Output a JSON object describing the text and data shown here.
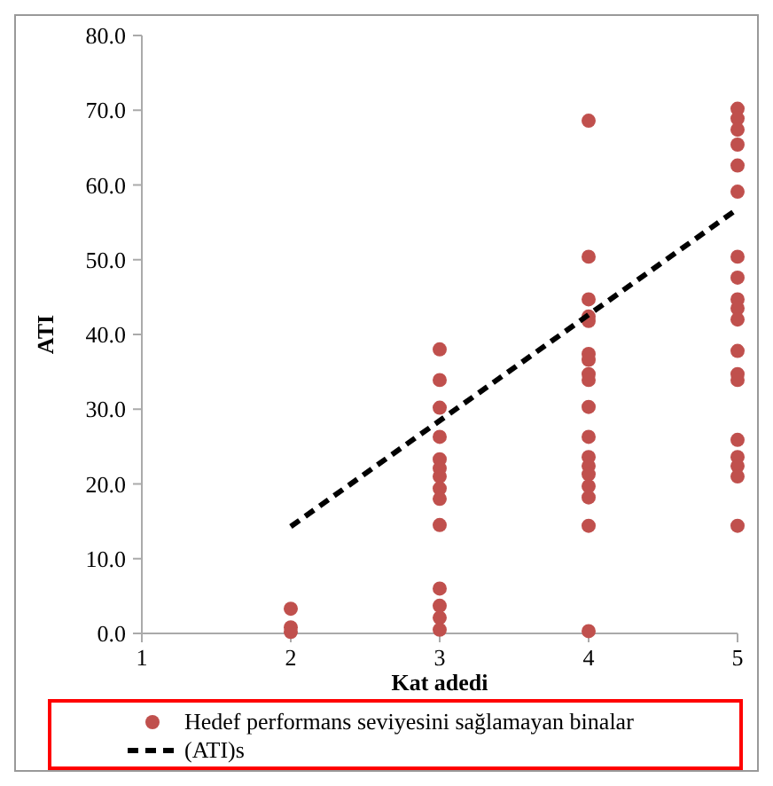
{
  "chart_data": {
    "type": "scatter",
    "xlabel": "Kat adedi",
    "ylabel": "ATI",
    "xlim": [
      1,
      5
    ],
    "xticks": [
      1,
      2,
      3,
      4,
      5
    ],
    "ylim": [
      0,
      80
    ],
    "yticks": [
      {
        "value": 0,
        "label": "0.0"
      },
      {
        "value": 10,
        "label": "10.0"
      },
      {
        "value": 20,
        "label": "20.0"
      },
      {
        "value": 30,
        "label": "30.0"
      },
      {
        "value": 40,
        "label": "40.0"
      },
      {
        "value": 50,
        "label": "50.0"
      },
      {
        "value": 60,
        "label": "60.0"
      },
      {
        "value": 70,
        "label": "70.0"
      },
      {
        "value": 80,
        "label": "80.0"
      }
    ],
    "grid": false,
    "legend": "bottom",
    "series": [
      {
        "name": "Hedef performans seviyesini sağlamayan binalar",
        "marker": "circle",
        "color": "#c0504d",
        "x": [
          2,
          2,
          2,
          3,
          3,
          3,
          3,
          3,
          3,
          3,
          3,
          3,
          3,
          3,
          3,
          3,
          3,
          4,
          4,
          4,
          4,
          4,
          4,
          4,
          4,
          4,
          4,
          4,
          4,
          4,
          4,
          4,
          4,
          4,
          4,
          5,
          5,
          5,
          5,
          5,
          5,
          5,
          5,
          5,
          5,
          5,
          5,
          5,
          5,
          5,
          5,
          5,
          5,
          5
        ],
        "values": [
          3.3,
          0.8,
          0.2,
          38.0,
          33.9,
          30.2,
          26.3,
          23.3,
          22.1,
          21.0,
          19.4,
          18.0,
          14.5,
          6.0,
          3.7,
          2.1,
          0.5,
          68.6,
          50.4,
          44.7,
          42.4,
          41.8,
          37.4,
          36.6,
          34.7,
          33.9,
          30.3,
          26.3,
          23.6,
          22.4,
          21.3,
          19.7,
          18.2,
          14.4,
          0.3,
          70.2,
          68.9,
          67.4,
          65.4,
          62.6,
          59.1,
          50.4,
          47.6,
          44.7,
          43.5,
          42.0,
          37.8,
          34.7,
          33.9,
          25.9,
          23.6,
          22.4,
          21.0,
          14.4
        ]
      },
      {
        "name": "(ATI)s",
        "type": "line",
        "line_style": "dashed",
        "marker": "none",
        "color": "#000000",
        "x": [
          2,
          5
        ],
        "values": [
          14.3,
          56.8
        ]
      }
    ]
  }
}
